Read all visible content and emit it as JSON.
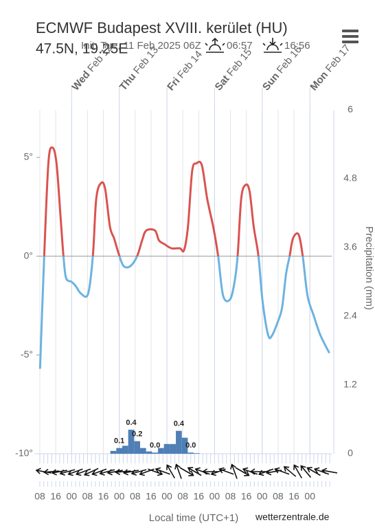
{
  "chart_data": {
    "type": "meteogram",
    "title": "ECMWF Budapest XVIII. kerület (HU)",
    "subtitle": "47.5N, 19.25E",
    "init": "Init: Tue, 11 Feb 2025 06Z",
    "sunrise": "06:57",
    "sunset": "16:56",
    "y2_label": "Precipitation (mm)",
    "x_label": "Local time (UTC+1)",
    "credit": "wetterzentrale.de",
    "xlim": [
      8,
      155
    ],
    "xticks": [
      {
        "value": 8,
        "label": "08"
      },
      {
        "value": 16,
        "label": "16"
      },
      {
        "value": 24,
        "label": "00"
      },
      {
        "value": 32,
        "label": "08"
      },
      {
        "value": 40,
        "label": "16"
      },
      {
        "value": 48,
        "label": "00"
      },
      {
        "value": 56,
        "label": "08"
      },
      {
        "value": 64,
        "label": "16"
      },
      {
        "value": 72,
        "label": "00"
      },
      {
        "value": 80,
        "label": "08"
      },
      {
        "value": 88,
        "label": "16"
      },
      {
        "value": 96,
        "label": "00"
      },
      {
        "value": 104,
        "label": "08"
      },
      {
        "value": 112,
        "label": "16"
      },
      {
        "value": 120,
        "label": "00"
      },
      {
        "value": 128,
        "label": "08"
      },
      {
        "value": 136,
        "label": "16"
      },
      {
        "value": 144,
        "label": "00"
      }
    ],
    "days": [
      {
        "value": 24,
        "day": "Wed",
        "date": "Feb 12"
      },
      {
        "value": 48,
        "day": "Thu",
        "date": "Feb 13"
      },
      {
        "value": 72,
        "day": "Fri",
        "date": "Feb 14"
      },
      {
        "value": 96,
        "day": "Sat",
        "date": "Feb 15"
      },
      {
        "value": 120,
        "day": "Sun",
        "date": "Feb 16"
      },
      {
        "value": 144,
        "day": "Mon",
        "date": "Feb 17"
      }
    ],
    "ylim": [
      -10,
      7.4
    ],
    "yticks": [
      {
        "value": -10,
        "label": "-10°"
      },
      {
        "value": -5,
        "label": "-5°"
      },
      {
        "value": 0,
        "label": "0°"
      },
      {
        "value": 5,
        "label": "5°"
      }
    ],
    "y2lim": [
      0,
      6
    ],
    "y2ticks": [
      0,
      1.2,
      2.4,
      3.6,
      4.8,
      6
    ],
    "temperature": {
      "color": "#d9534f",
      "negative_color": "#6cb2e0",
      "x": [
        8.1,
        10.2,
        12.3,
        14.3,
        16.4,
        18.5,
        19.9,
        21.2,
        24,
        26,
        28.8,
        32.3,
        34.7,
        36.4,
        38.8,
        40.9,
        43.3,
        45.4,
        47.8,
        50.2,
        53.6,
        57,
        59.5,
        61.6,
        66,
        68,
        70.9,
        74.3,
        78.5,
        80.6,
        82.6,
        84.7,
        86.9,
        89.6,
        92.3,
        95.5,
        97.8,
        100.3,
        103.7,
        105.9,
        107.6,
        109.4,
        111.5,
        113.6,
        115.7,
        118.1,
        120.2,
        123,
        125,
        127.9,
        130,
        132,
        133.8,
        135.5,
        138.3,
        140.4,
        142.8,
        145.9,
        149.3,
        153.8
      ],
      "values": [
        -5.7,
        0,
        4.7,
        5.5,
        4.7,
        1.9,
        0,
        -1.1,
        -1.3,
        -1.5,
        -1.9,
        -1.9,
        0,
        2.9,
        3.7,
        3.4,
        1.5,
        0.9,
        0.1,
        -0.5,
        -0.5,
        0,
        0.8,
        1.3,
        1.3,
        0.8,
        0.6,
        0.4,
        0.4,
        0.3,
        1.5,
        4.3,
        4.7,
        4.6,
        2.9,
        1.4,
        0,
        -2,
        -2.2,
        -1.4,
        0,
        2.9,
        3.6,
        3.3,
        1.5,
        0,
        -2.3,
        -4,
        -4,
        -3.3,
        -2.6,
        -0.9,
        0,
        0.9,
        1.1,
        0,
        -2,
        -3,
        -4,
        -4.9
      ]
    },
    "precipitation": {
      "axis": "y2",
      "color": "#4f7fb5",
      "bar_hours": 3,
      "x": [
        45,
        48,
        51,
        54,
        57,
        60,
        63,
        66,
        69,
        72,
        75,
        78,
        81,
        84,
        87
      ],
      "values": [
        0.05,
        0.1,
        0.14,
        0.42,
        0.22,
        0.1,
        0.04,
        0.02,
        0.1,
        0.17,
        0.17,
        0.4,
        0.28,
        0.02,
        0.01
      ],
      "value_labels": [
        null,
        "0.1",
        null,
        "0.4",
        "0.2",
        null,
        null,
        "0.0",
        null,
        null,
        null,
        "0.4",
        null,
        "0.0",
        null
      ]
    },
    "wind": {
      "color": "#111",
      "x": [
        10,
        14,
        18,
        22,
        26,
        30,
        34,
        38,
        42,
        46,
        50,
        54,
        58,
        62,
        66,
        70,
        74,
        78,
        82,
        86,
        90,
        94,
        98,
        102,
        106,
        110,
        114,
        118,
        122,
        126,
        130,
        134,
        138,
        142,
        146,
        150,
        154
      ],
      "direction": [
        190,
        175,
        170,
        165,
        160,
        160,
        155,
        160,
        165,
        170,
        175,
        170,
        165,
        160,
        20,
        200,
        240,
        250,
        30,
        210,
        200,
        180,
        160,
        200,
        250,
        30,
        200,
        180,
        160,
        170,
        200,
        220,
        240,
        230,
        210,
        200,
        190
      ]
    },
    "grid": true
  }
}
